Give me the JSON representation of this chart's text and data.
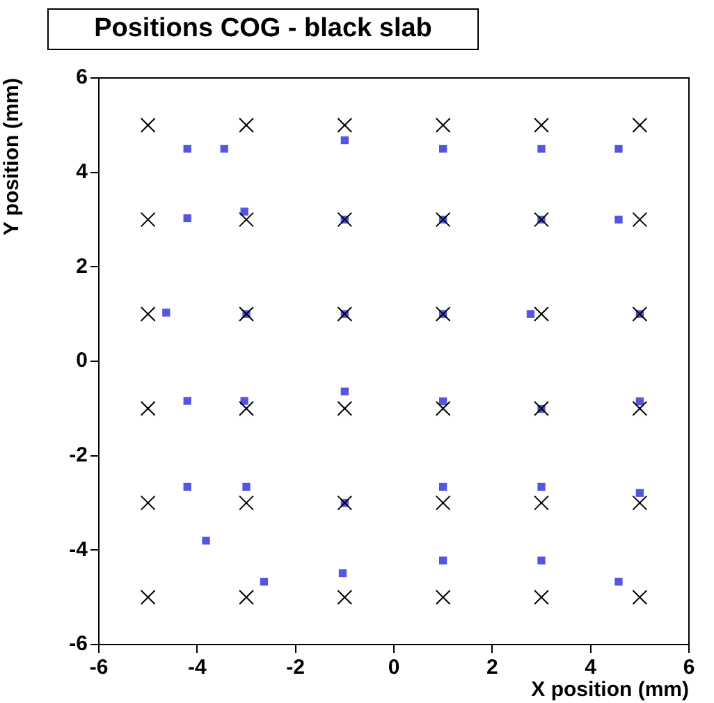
{
  "chart_data": {
    "type": "scatter",
    "title": "Positions COG - black slab",
    "xlabel": "X position (mm)",
    "ylabel": "Y position (mm)",
    "xlim": [
      -6,
      6
    ],
    "xticks": [
      -6,
      -4,
      -2,
      0,
      2,
      4,
      6
    ],
    "ylim": [
      -6,
      6
    ],
    "yticks": [
      -6,
      -4,
      -2,
      0,
      2,
      4,
      6
    ],
    "grid": false,
    "legend": false,
    "series": [
      {
        "color": "#000000",
        "marker": "cross",
        "x": [
          -5,
          -3,
          -1,
          1,
          3,
          5,
          -5,
          -3,
          -1,
          1,
          3,
          5,
          -5,
          -3,
          -1,
          1,
          3,
          5,
          -5,
          -3,
          -1,
          1,
          3,
          5,
          -5,
          -3,
          -1,
          1,
          3,
          5,
          -5,
          -3,
          -1,
          1,
          3,
          5
        ],
        "values": [
          5,
          5,
          5,
          5,
          5,
          5,
          3,
          3,
          3,
          3,
          3,
          3,
          1,
          1,
          1,
          1,
          1,
          1,
          -1,
          -1,
          -1,
          -1,
          -1,
          -1,
          -3,
          -3,
          -3,
          -3,
          -3,
          -3,
          -5,
          -5,
          -5,
          -5,
          -5,
          -5
        ]
      },
      {
        "color": "#5555dd",
        "marker": "square",
        "x": [
          -4.2,
          -3.45,
          -1,
          1,
          3,
          4.57,
          -4.2,
          -3.04,
          -1,
          1,
          3,
          4.57,
          -4.63,
          -3,
          -1,
          1,
          2.78,
          5,
          -4.2,
          -3.04,
          -1,
          1,
          3,
          5,
          -4.2,
          -3,
          -1,
          1,
          3,
          5,
          -3.82,
          -2.64,
          -1.04,
          1,
          3,
          4.57
        ],
        "values": [
          4.5,
          4.5,
          4.68,
          4.5,
          4.5,
          4.5,
          3.03,
          3.17,
          3,
          3,
          3,
          3,
          1.03,
          1,
          1,
          1,
          1,
          1,
          -0.84,
          -0.84,
          -0.64,
          -0.85,
          -1.01,
          -0.85,
          -2.66,
          -2.66,
          -3,
          -2.66,
          -2.66,
          -2.79,
          -3.8,
          -4.67,
          -4.49,
          -4.22,
          -4.22,
          -4.67
        ]
      }
    ]
  }
}
